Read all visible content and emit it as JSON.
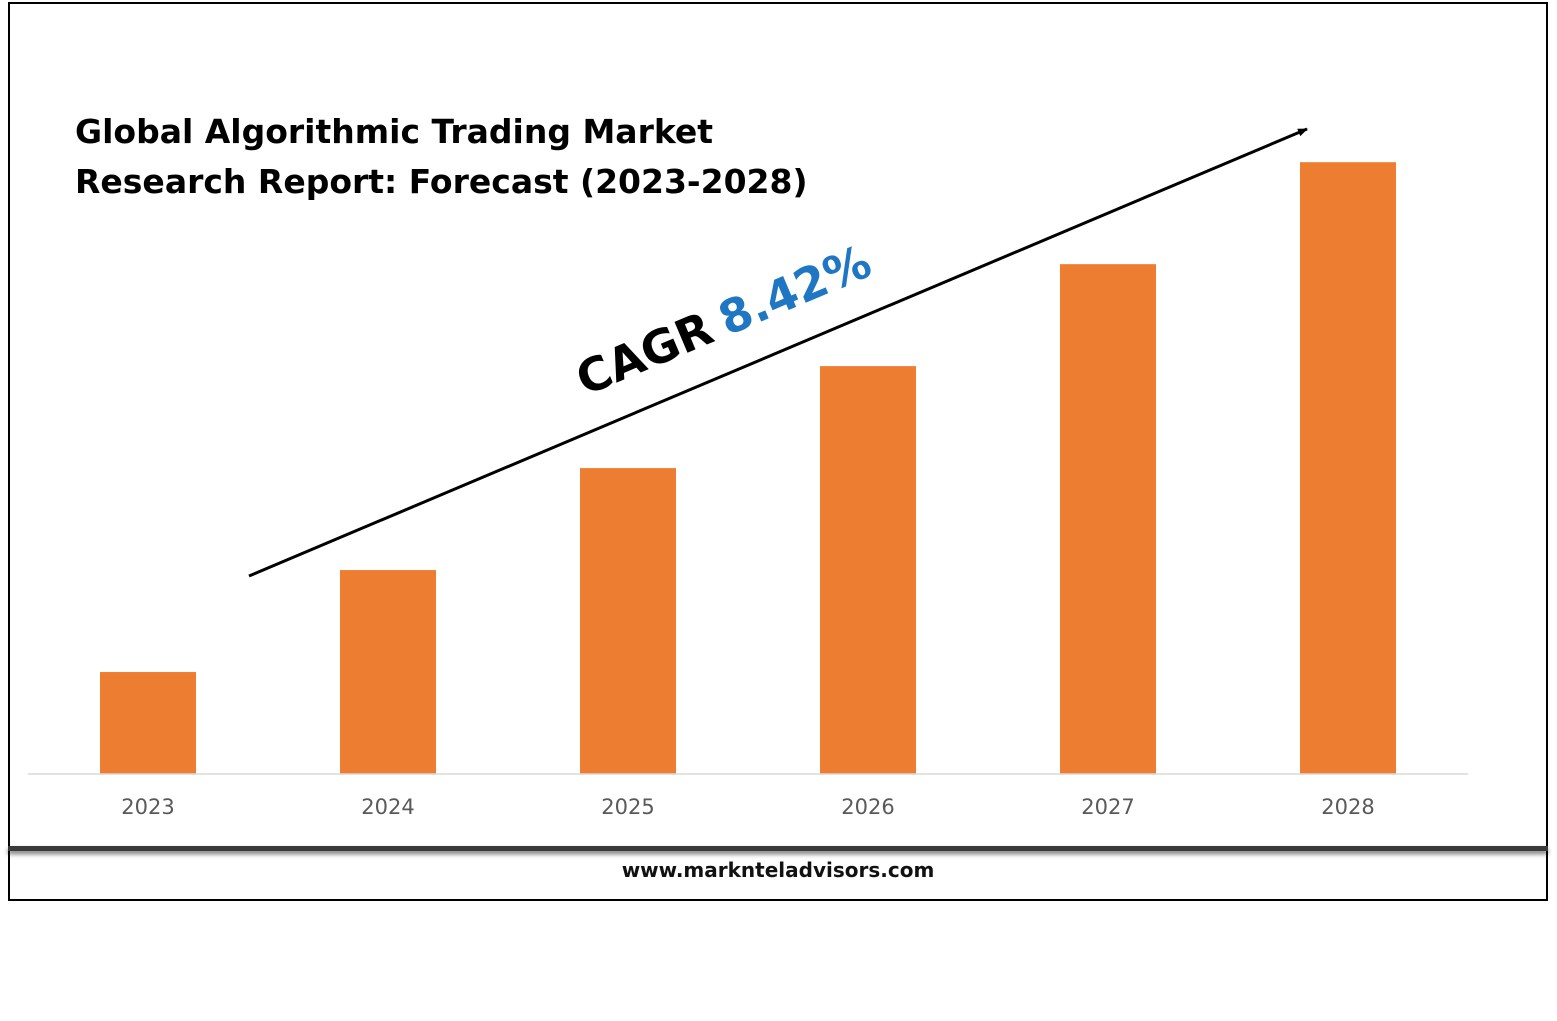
{
  "chart_data": {
    "type": "bar",
    "title_lines": [
      "Global Algorithmic Trading Market",
      "Research Report: Forecast (2023-2028)"
    ],
    "categories": [
      "2023",
      "2024",
      "2025",
      "2026",
      "2027",
      "2028"
    ],
    "values": [
      1.0,
      2.0,
      3.0,
      4.0,
      5.0,
      6.0
    ],
    "ylim": [
      0,
      6.1
    ],
    "y_axis_shown": false,
    "grid": false,
    "annotation": {
      "label": "CAGR",
      "value": "8.42%",
      "arrow": "trend arrow rising left-to-right"
    },
    "colors": {
      "bar": "#ED7D31",
      "cagr_value": "#1F77C4",
      "text": "#000000",
      "tick": "#595959"
    }
  },
  "footer": {
    "website": "www.marknteladvisors.com"
  }
}
